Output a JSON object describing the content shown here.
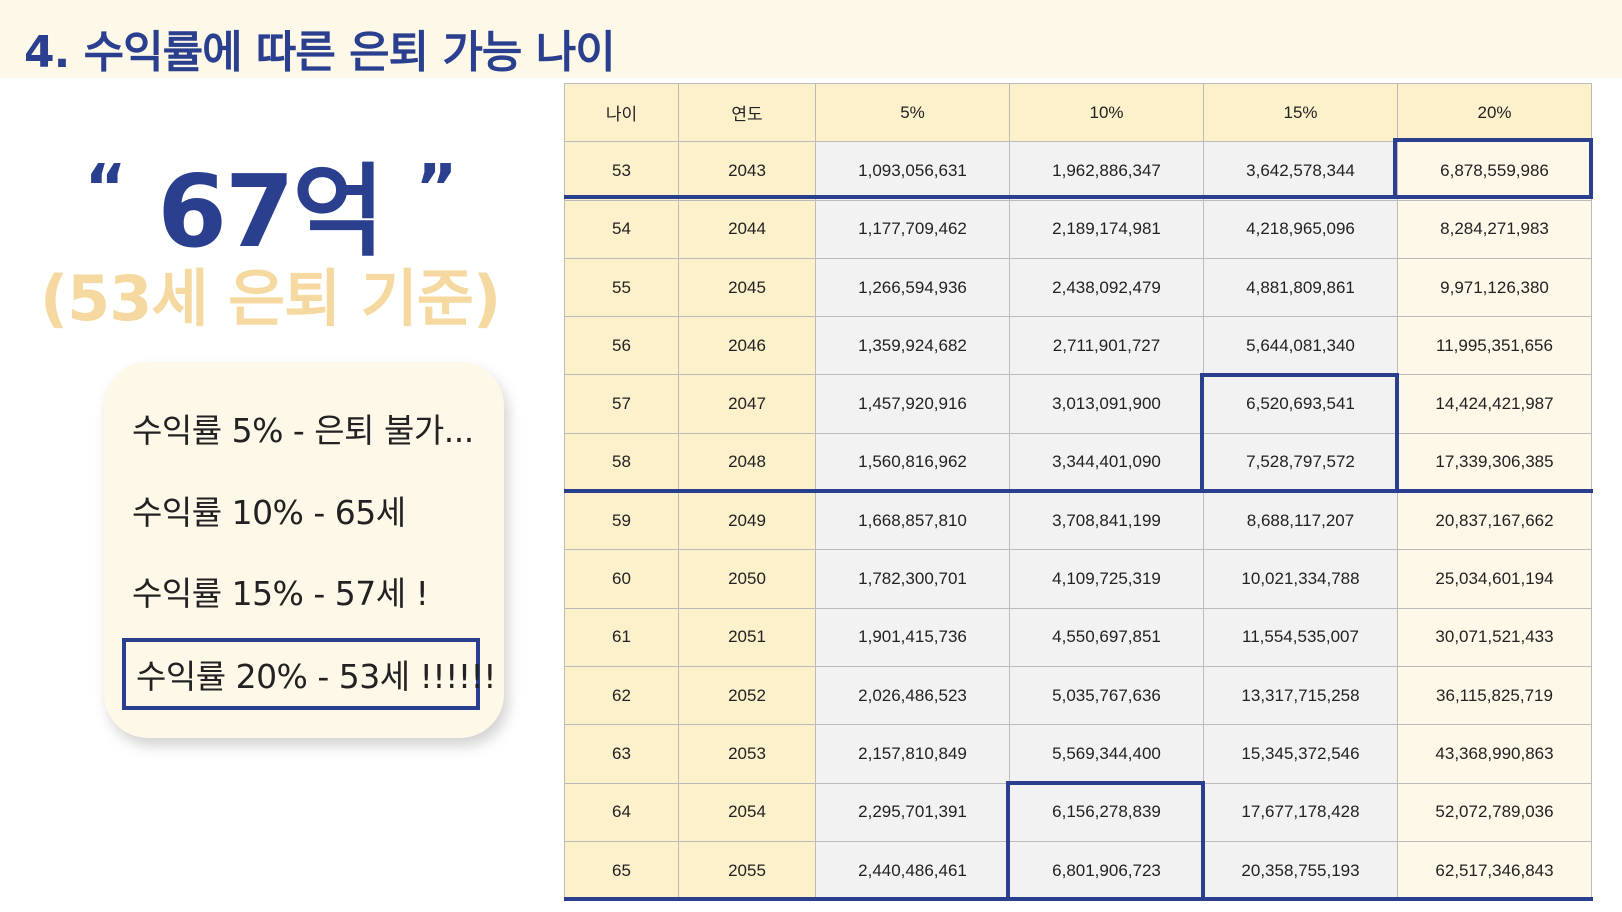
{
  "title": "4. 수익률에 따른 은퇴 가능 나이",
  "highlight": {
    "open_quote": "“",
    "amount": "67억",
    "close_quote": "”",
    "basis": "(53세 은퇴 기준)"
  },
  "summary": [
    "수익률 5% - 은퇴 불가...",
    "수익률 10% - 65세",
    "수익률 15% - 57세 !",
    "수익률 20% - 53세 !!!!!!"
  ],
  "table": {
    "headers": [
      "나이",
      "연도",
      "5%",
      "10%",
      "15%",
      "20%"
    ],
    "rows": [
      [
        "53",
        "2043",
        "1,093,056,631",
        "1,962,886,347",
        "3,642,578,344",
        "6,878,559,986"
      ],
      [
        "54",
        "2044",
        "1,177,709,462",
        "2,189,174,981",
        "4,218,965,096",
        "8,284,271,983"
      ],
      [
        "55",
        "2045",
        "1,266,594,936",
        "2,438,092,479",
        "4,881,809,861",
        "9,971,126,380"
      ],
      [
        "56",
        "2046",
        "1,359,924,682",
        "2,711,901,727",
        "5,644,081,340",
        "11,995,351,656"
      ],
      [
        "57",
        "2047",
        "1,457,920,916",
        "3,013,091,900",
        "6,520,693,541",
        "14,424,421,987"
      ],
      [
        "58",
        "2048",
        "1,560,816,962",
        "3,344,401,090",
        "7,528,797,572",
        "17,339,306,385"
      ],
      [
        "59",
        "2049",
        "1,668,857,810",
        "3,708,841,199",
        "8,688,117,207",
        "20,837,167,662"
      ],
      [
        "60",
        "2050",
        "1,782,300,701",
        "4,109,725,319",
        "10,021,334,788",
        "25,034,601,194"
      ],
      [
        "61",
        "2051",
        "1,901,415,736",
        "4,550,697,851",
        "11,554,535,007",
        "30,071,521,433"
      ],
      [
        "62",
        "2052",
        "2,026,486,523",
        "5,035,767,636",
        "13,317,715,258",
        "36,115,825,719"
      ],
      [
        "63",
        "2053",
        "2,157,810,849",
        "5,569,344,400",
        "15,345,372,546",
        "43,368,990,863"
      ],
      [
        "64",
        "2054",
        "2,295,701,391",
        "6,156,278,839",
        "17,677,178,428",
        "52,072,789,036"
      ],
      [
        "65",
        "2055",
        "2,440,486,461",
        "6,801,906,723",
        "20,358,755,193",
        "62,517,346,843"
      ]
    ]
  },
  "colors": {
    "accent": "#2b3f8f",
    "header_bg": "#fdf1cc",
    "panel_bg": "#fdf8e8",
    "basis_text": "#f5d9a0"
  }
}
